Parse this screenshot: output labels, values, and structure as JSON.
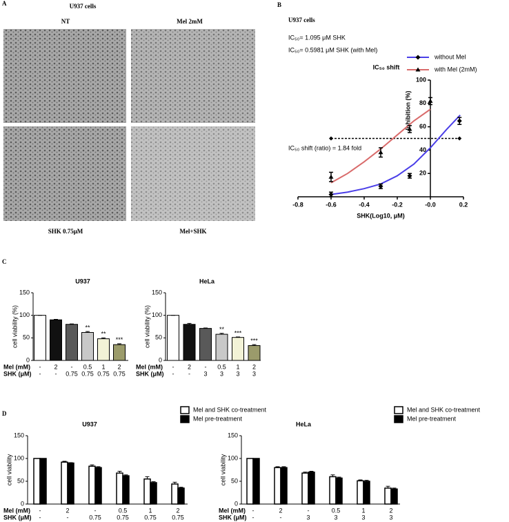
{
  "panel_labels": [
    "A",
    "B",
    "C",
    "D"
  ],
  "figure_a": {
    "title": "U937 cells",
    "images": [
      "NT",
      "Mel 2mM",
      "SHK 0.75μM",
      "Mel+SHK"
    ]
  },
  "chart_data": [
    {
      "type": "line",
      "subtitle": "U937 cells",
      "annotations": [
        "IC₅₀= 1.095 μM SHK",
        "IC₅₀= 0.5981 μM SHK (with Mel)",
        "IC₅₀ shift (ratio) = 1.84 fold"
      ],
      "title": "IC₅₀ shift",
      "xlabel": "SHK(Log10, μM)",
      "ylabel": "Inhibition (%)",
      "xlim": [
        -0.8,
        0.2
      ],
      "xticks": [
        -0.8,
        -0.6,
        -0.4,
        -0.2,
        {
          "value": 0,
          "label": "-0.0"
        },
        0.2
      ],
      "ylim": [
        0,
        100
      ],
      "yticks": [
        20,
        40,
        60,
        80,
        100
      ],
      "legend": "upper right",
      "marker_color": "#000000",
      "series": [
        {
          "name": "without Mel",
          "color": "#4a3ee8",
          "marker": "diamond",
          "x": [
            -0.6,
            -0.3,
            -0.125,
            0.176
          ],
          "values": [
            2,
            9,
            18,
            65
          ],
          "errors": [
            2,
            2,
            2,
            3
          ],
          "fit_x": [
            -0.6,
            -0.5,
            -0.4,
            -0.3,
            -0.2,
            -0.1,
            0,
            0.1,
            0.18
          ],
          "fit_values": [
            2,
            4,
            7,
            11,
            18,
            28,
            42,
            58,
            70
          ]
        },
        {
          "name": "with Mel (2mM)",
          "color": "#d96b6b",
          "marker": "triangle",
          "x": [
            -0.6,
            -0.3,
            -0.125,
            0
          ],
          "values": [
            17,
            38,
            58,
            82
          ],
          "errors": [
            4,
            4,
            3,
            3
          ],
          "fit_x": [
            -0.6,
            -0.5,
            -0.4,
            -0.3,
            -0.2,
            -0.1,
            0
          ],
          "fit_values": [
            12,
            20,
            30,
            41,
            53,
            65,
            75
          ]
        }
      ],
      "reference_line": {
        "y": 50,
        "x": [
          -0.6,
          0.176
        ]
      }
    },
    {
      "type": "bar",
      "title": "U937",
      "ylabel": "cell viability (%)",
      "ylim": [
        0,
        150
      ],
      "yticks": [
        0,
        50,
        100,
        150
      ],
      "values": [
        100,
        90,
        80,
        62,
        48,
        35
      ],
      "errors": [
        0,
        1,
        1,
        2,
        2,
        2
      ],
      "colors": [
        "#ffffff",
        "#111111",
        "#595959",
        "#c8c8c8",
        "#f2f2d6",
        "#9b9b6b"
      ],
      "significance": [
        null,
        null,
        null,
        "**",
        "**",
        "***"
      ],
      "x_table": {
        "row_labels": [
          "Mel (mM)",
          "SHK (μM)"
        ],
        "rows": [
          [
            "-",
            "2",
            "-",
            "0.5",
            "1",
            "2"
          ],
          [
            "-",
            "-",
            "0.75",
            "0.75",
            "0.75",
            "0.75"
          ]
        ]
      }
    },
    {
      "type": "bar",
      "title": "HeLa",
      "ylabel": "cell viability (%)",
      "ylim": [
        0,
        150
      ],
      "yticks": [
        0,
        50,
        100,
        150
      ],
      "values": [
        100,
        80,
        71,
        58,
        51,
        33
      ],
      "errors": [
        0,
        2,
        1,
        2,
        1,
        2
      ],
      "colors": [
        "#ffffff",
        "#111111",
        "#595959",
        "#c8c8c8",
        "#f2f2d6",
        "#9b9b6b"
      ],
      "significance": [
        null,
        null,
        null,
        "**",
        "***",
        "***"
      ],
      "x_table": {
        "row_labels": [
          "Mel (mM)",
          "SHK (μM)"
        ],
        "rows": [
          [
            "-",
            "2",
            "-",
            "0.5",
            "1",
            "2"
          ],
          [
            "-",
            "-",
            "3",
            "3",
            "3",
            "3"
          ]
        ]
      }
    },
    {
      "type": "grouped_bar",
      "title": "U937",
      "ylabel": "cell viability",
      "ylim": [
        0,
        150
      ],
      "yticks": [
        0,
        50,
        100,
        150
      ],
      "series": [
        {
          "name": "Mel and SHK co-treatment",
          "color": "#ffffff",
          "values": [
            100,
            92,
            83,
            68,
            55,
            44
          ],
          "errors": [
            0,
            2,
            3,
            4,
            5,
            4
          ]
        },
        {
          "name": "Mel pre-treatment",
          "color": "#000000",
          "values": [
            100,
            90,
            80,
            62,
            47,
            35
          ],
          "errors": [
            0,
            1,
            2,
            2,
            2,
            2
          ]
        }
      ],
      "x_table": {
        "row_labels": [
          "Mel (mM)",
          "SHK (μM)"
        ],
        "rows": [
          [
            "-",
            "2",
            "-",
            "0.5",
            "1",
            "2"
          ],
          [
            "-",
            "-",
            "0.75",
            "0.75",
            "0.75",
            "0.75"
          ]
        ]
      }
    },
    {
      "type": "grouped_bar",
      "title": "HeLa",
      "ylabel": "cell viability",
      "ylim": [
        0,
        150
      ],
      "yticks": [
        0,
        50,
        100,
        150
      ],
      "series": [
        {
          "name": "Mel and SHK co-treatment",
          "color": "#ffffff",
          "values": [
            100,
            80,
            68,
            60,
            51,
            35
          ],
          "errors": [
            0,
            2,
            2,
            4,
            2,
            4
          ]
        },
        {
          "name": "Mel pre-treatment",
          "color": "#000000",
          "values": [
            100,
            80,
            70,
            57,
            50,
            33
          ],
          "errors": [
            0,
            2,
            2,
            2,
            2,
            2
          ]
        }
      ],
      "x_table": {
        "row_labels": [
          "Mel (mM)",
          "SHK (μM)"
        ],
        "rows": [
          [
            "-",
            "2",
            "-",
            "0.5",
            "1",
            "2"
          ],
          [
            "-",
            "-",
            "3",
            "3",
            "3",
            "3"
          ]
        ]
      }
    }
  ]
}
